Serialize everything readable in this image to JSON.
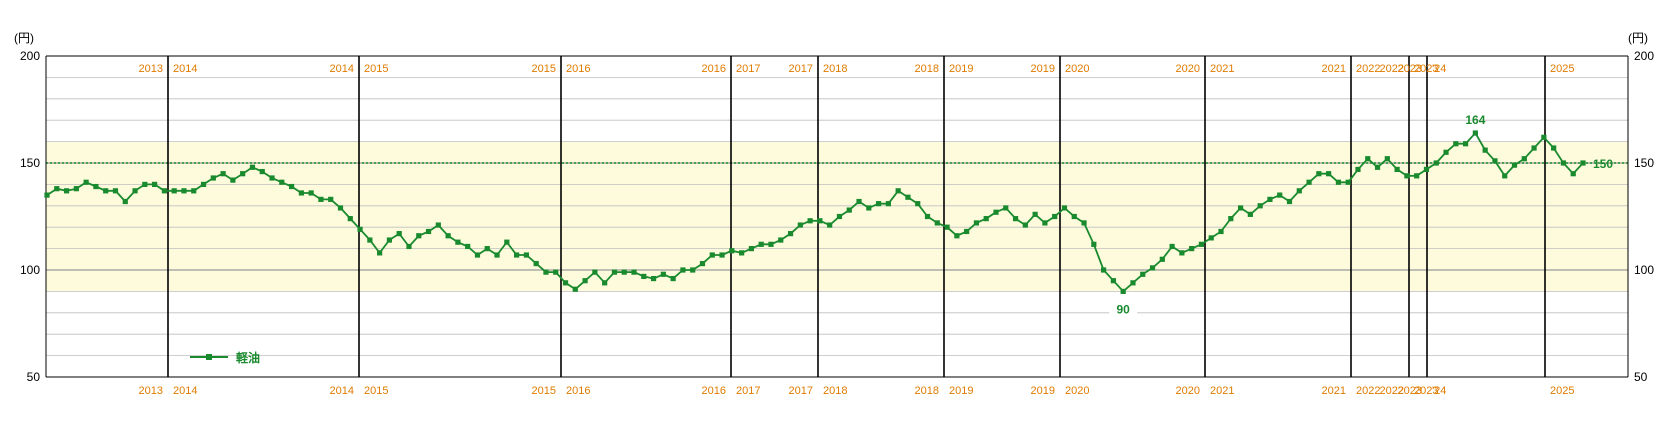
{
  "chart_data": {
    "type": "line",
    "ylabel_left": "(円)",
    "ylabel_right": "(円)",
    "ylim": [
      50,
      200
    ],
    "yticks": [
      50,
      100,
      150,
      200
    ],
    "minor_grid_step": 10,
    "band": [
      90,
      160
    ],
    "reference_value": 150,
    "reference_label": "150",
    "series": [
      {
        "name": "軽油",
        "values": [
          135,
          138,
          137,
          138,
          141,
          139,
          137,
          137,
          132,
          137,
          140,
          140,
          137,
          137,
          137,
          137,
          140,
          143,
          145,
          142,
          145,
          148,
          146,
          143,
          141,
          139,
          136,
          136,
          133,
          133,
          129,
          124,
          119,
          114,
          108,
          114,
          117,
          111,
          116,
          118,
          121,
          116,
          113,
          111,
          107,
          110,
          107,
          113,
          107,
          107,
          103,
          99,
          99,
          94,
          91,
          95,
          99,
          94,
          99,
          99,
          99,
          97,
          96,
          98,
          96,
          100,
          100,
          103,
          107,
          107,
          109,
          108,
          110,
          112,
          112,
          114,
          117,
          121,
          123,
          123,
          121,
          125,
          128,
          132,
          129,
          131,
          131,
          137,
          134,
          131,
          125,
          122,
          120,
          116,
          118,
          122,
          124,
          127,
          129,
          124,
          121,
          126,
          122,
          125,
          129,
          125,
          122,
          112,
          100,
          95,
          90,
          94,
          98,
          101,
          105,
          111,
          108,
          110,
          112,
          115,
          118,
          124,
          129,
          126,
          130,
          133,
          135,
          132,
          137,
          141,
          145,
          145,
          141,
          141,
          147,
          152,
          148,
          152,
          147,
          144,
          144,
          147,
          150,
          155,
          159,
          159,
          164,
          156,
          151,
          144,
          149,
          152,
          157,
          162,
          157,
          150,
          145,
          150
        ]
      }
    ],
    "legend": {
      "label": "軽油",
      "position": "bottom-left"
    },
    "annotations": {
      "max_label": "164",
      "min_label": "90",
      "end_label": "150"
    },
    "year_dividers": [
      {
        "left": "2013",
        "right": "2014"
      },
      {
        "left": "2014",
        "right": "2015"
      },
      {
        "left": "2015",
        "right": "2016"
      },
      {
        "left": "2016",
        "right": "2017"
      },
      {
        "left": "2017",
        "right": "2018"
      },
      {
        "left": "2018",
        "right": "2019"
      },
      {
        "left": "2019",
        "right": "2020"
      },
      {
        "left": "2020",
        "right": "2021"
      },
      {
        "left": "2021",
        "right": "2022"
      },
      {
        "left": "2022",
        "right": "2023"
      },
      {
        "left": "2023",
        "right": "'24"
      },
      {
        "left": "",
        "right": "2025"
      }
    ],
    "colors": {
      "line": "#1a8a2e",
      "year_text": "#e07b00",
      "band_fill": "#fdfbdc",
      "grid": "#bfbfbf",
      "reference": "#1a8a2e",
      "divider": "#000000"
    }
  }
}
